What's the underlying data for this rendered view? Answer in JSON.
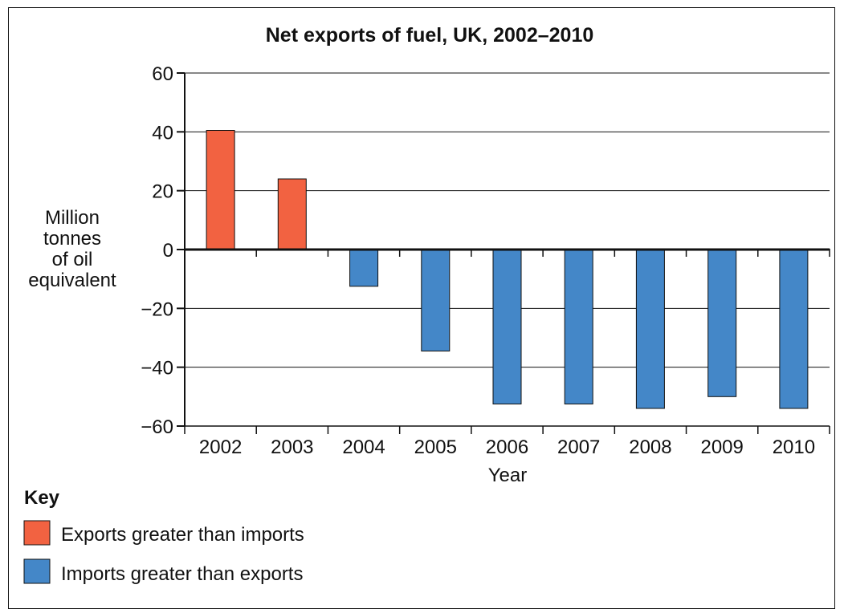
{
  "chart_data": {
    "type": "bar",
    "title": "Net exports of fuel, UK, 2002–2010",
    "xlabel": "Year",
    "ylabel_lines": [
      "Million",
      "tonnes",
      "of oil",
      "equivalent"
    ],
    "categories": [
      "2002",
      "2003",
      "2004",
      "2005",
      "2006",
      "2007",
      "2008",
      "2009",
      "2010"
    ],
    "values": [
      40.5,
      24,
      -12.5,
      -34.5,
      -52.5,
      -52.5,
      -54,
      -50,
      -54
    ],
    "ylim": [
      -60,
      60
    ],
    "yticks": [
      60,
      40,
      20,
      0,
      -20,
      -40,
      -60
    ],
    "ytick_labels": [
      "60",
      "40",
      "20",
      "0",
      "−20",
      "−40",
      "−60"
    ],
    "grid": true,
    "colors": {
      "exports": "#f26241",
      "imports": "#4487c8"
    },
    "key": {
      "title": "Key",
      "items": [
        {
          "label": "Exports greater than imports",
          "color": "#f26241"
        },
        {
          "label": "Imports greater than exports",
          "color": "#4487c8"
        }
      ]
    }
  }
}
